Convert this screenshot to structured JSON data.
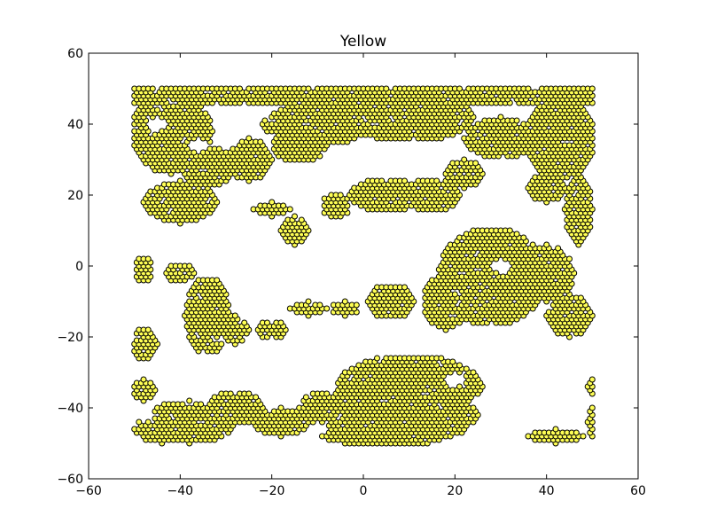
{
  "chart_data": {
    "type": "scatter",
    "title": "Yellow",
    "xlabel": "",
    "ylabel": "",
    "xlim": [
      -60,
      60
    ],
    "ylim": [
      -60,
      60
    ],
    "xticks": [
      -60,
      -40,
      -20,
      0,
      20,
      40,
      60
    ],
    "yticks": [
      -60,
      -40,
      -20,
      0,
      20,
      40,
      60
    ],
    "xtick_labels": [
      "−60",
      "−40",
      "−20",
      "0",
      "20",
      "40",
      "60"
    ],
    "ytick_labels": [
      "−60",
      "−40",
      "−20",
      "0",
      "20",
      "40",
      "60"
    ],
    "grid": false,
    "marker_fill": "#ffff55",
    "marker_edge": "#000000",
    "lattice": {
      "x_min": -50,
      "x_max": 50,
      "y_min": -50,
      "y_max": 50,
      "dx": 1,
      "dy": 1
    },
    "series": [
      {
        "regions": [
          {
            "shape": "rect",
            "x": [
              -50,
              50
            ],
            "y": [
              46,
              50
            ]
          },
          {
            "shape": "ellipse",
            "cx": -42,
            "cy": 38,
            "rx": 9,
            "ry": 12
          },
          {
            "shape": "ellipse",
            "cx": -40,
            "cy": 18,
            "rx": 8,
            "ry": 6
          },
          {
            "shape": "ellipse",
            "cx": -34,
            "cy": 28,
            "rx": 6,
            "ry": 6
          },
          {
            "shape": "ellipse",
            "cx": -25,
            "cy": 30,
            "rx": 5,
            "ry": 6
          },
          {
            "shape": "ellipse",
            "cx": -14,
            "cy": 34,
            "rx": 6,
            "ry": 5
          },
          {
            "shape": "ellipse",
            "cx": -10,
            "cy": 40,
            "rx": 12,
            "ry": 6
          },
          {
            "shape": "ellipse",
            "cx": 10,
            "cy": 42,
            "rx": 14,
            "ry": 7
          },
          {
            "shape": "ellipse",
            "cx": 43,
            "cy": 36,
            "rx": 8,
            "ry": 12
          },
          {
            "shape": "ellipse",
            "cx": 30,
            "cy": 36,
            "rx": 8,
            "ry": 6
          },
          {
            "shape": "ellipse",
            "cx": 47,
            "cy": 16,
            "rx": 3,
            "ry": 10
          },
          {
            "shape": "ellipse",
            "cx": 40,
            "cy": 22,
            "rx": 4,
            "ry": 4
          },
          {
            "shape": "ellipse",
            "cx": 5,
            "cy": 20,
            "rx": 8,
            "ry": 5
          },
          {
            "shape": "ellipse",
            "cx": 15,
            "cy": 20,
            "rx": 6,
            "ry": 5
          },
          {
            "shape": "ellipse",
            "cx": 22,
            "cy": 26,
            "rx": 4,
            "ry": 4
          },
          {
            "shape": "ellipse",
            "cx": -6,
            "cy": 17,
            "rx": 3,
            "ry": 4
          },
          {
            "shape": "ellipse",
            "cx": -15,
            "cy": 10,
            "rx": 3,
            "ry": 4
          },
          {
            "shape": "ellipse",
            "cx": -20,
            "cy": 16,
            "rx": 4,
            "ry": 2
          },
          {
            "shape": "ellipse",
            "cx": 28,
            "cy": -3,
            "rx": 12,
            "ry": 14
          },
          {
            "shape": "ellipse",
            "cx": 40,
            "cy": -2,
            "rx": 6,
            "ry": 8
          },
          {
            "shape": "ellipse",
            "cx": 45,
            "cy": -14,
            "rx": 5,
            "ry": 6
          },
          {
            "shape": "ellipse",
            "cx": 18,
            "cy": -10,
            "rx": 5,
            "ry": 8
          },
          {
            "shape": "ellipse",
            "cx": 6,
            "cy": -10,
            "rx": 5,
            "ry": 5
          },
          {
            "shape": "ellipse",
            "cx": -48,
            "cy": -1,
            "rx": 2,
            "ry": 4
          },
          {
            "shape": "ellipse",
            "cx": -40,
            "cy": -2,
            "rx": 3,
            "ry": 3
          },
          {
            "shape": "ellipse",
            "cx": -34,
            "cy": -14,
            "rx": 5,
            "ry": 11
          },
          {
            "shape": "ellipse",
            "cx": -28,
            "cy": -18,
            "rx": 3,
            "ry": 4
          },
          {
            "shape": "ellipse",
            "cx": -20,
            "cy": -18,
            "rx": 3,
            "ry": 3
          },
          {
            "shape": "ellipse",
            "cx": -12,
            "cy": -12,
            "rx": 4,
            "ry": 2
          },
          {
            "shape": "ellipse",
            "cx": -4,
            "cy": -12,
            "rx": 3,
            "ry": 2
          },
          {
            "shape": "ellipse",
            "cx": -48,
            "cy": -22,
            "rx": 3,
            "ry": 5
          },
          {
            "shape": "ellipse",
            "cx": -48,
            "cy": -35,
            "rx": 3,
            "ry": 3
          },
          {
            "shape": "ellipse",
            "cx": 10,
            "cy": -34,
            "rx": 16,
            "ry": 9
          },
          {
            "shape": "ellipse",
            "cx": 5,
            "cy": -45,
            "rx": 18,
            "ry": 6
          },
          {
            "shape": "ellipse",
            "cx": -38,
            "cy": -44,
            "rx": 10,
            "ry": 6
          },
          {
            "shape": "ellipse",
            "cx": -28,
            "cy": -40,
            "rx": 6,
            "ry": 5
          },
          {
            "shape": "ellipse",
            "cx": -18,
            "cy": -44,
            "rx": 6,
            "ry": 4
          },
          {
            "shape": "ellipse",
            "cx": -8,
            "cy": -40,
            "rx": 6,
            "ry": 5
          },
          {
            "shape": "ellipse",
            "cx": -44,
            "cy": -46,
            "rx": 6,
            "ry": 4
          },
          {
            "shape": "ellipse",
            "cx": 20,
            "cy": -42,
            "rx": 5,
            "ry": 4
          },
          {
            "shape": "ellipse",
            "cx": 42,
            "cy": -48,
            "rx": 6,
            "ry": 2
          },
          {
            "shape": "ellipse",
            "cx": 50,
            "cy": -44,
            "rx": 1,
            "ry": 5
          },
          {
            "shape": "ellipse",
            "cx": 50,
            "cy": -34,
            "rx": 1,
            "ry": 2
          }
        ],
        "holes": [
          {
            "cx": -45,
            "cy": 40,
            "rx": 2,
            "ry": 2
          },
          {
            "cx": -36,
            "cy": 34,
            "rx": 2,
            "ry": 2
          },
          {
            "cx": -32,
            "cy": 44,
            "rx": 2,
            "ry": 2
          },
          {
            "cx": 30,
            "cy": 0,
            "rx": 2,
            "ry": 2
          },
          {
            "cx": 20,
            "cy": -32,
            "rx": 2,
            "ry": 2
          },
          {
            "cx": -2,
            "cy": 28,
            "rx": 3,
            "ry": 2
          },
          {
            "cx": -48,
            "cy": -42,
            "rx": 2,
            "ry": 2
          },
          {
            "cx": -10,
            "cy": -46,
            "rx": 2,
            "ry": 2
          }
        ]
      }
    ]
  }
}
